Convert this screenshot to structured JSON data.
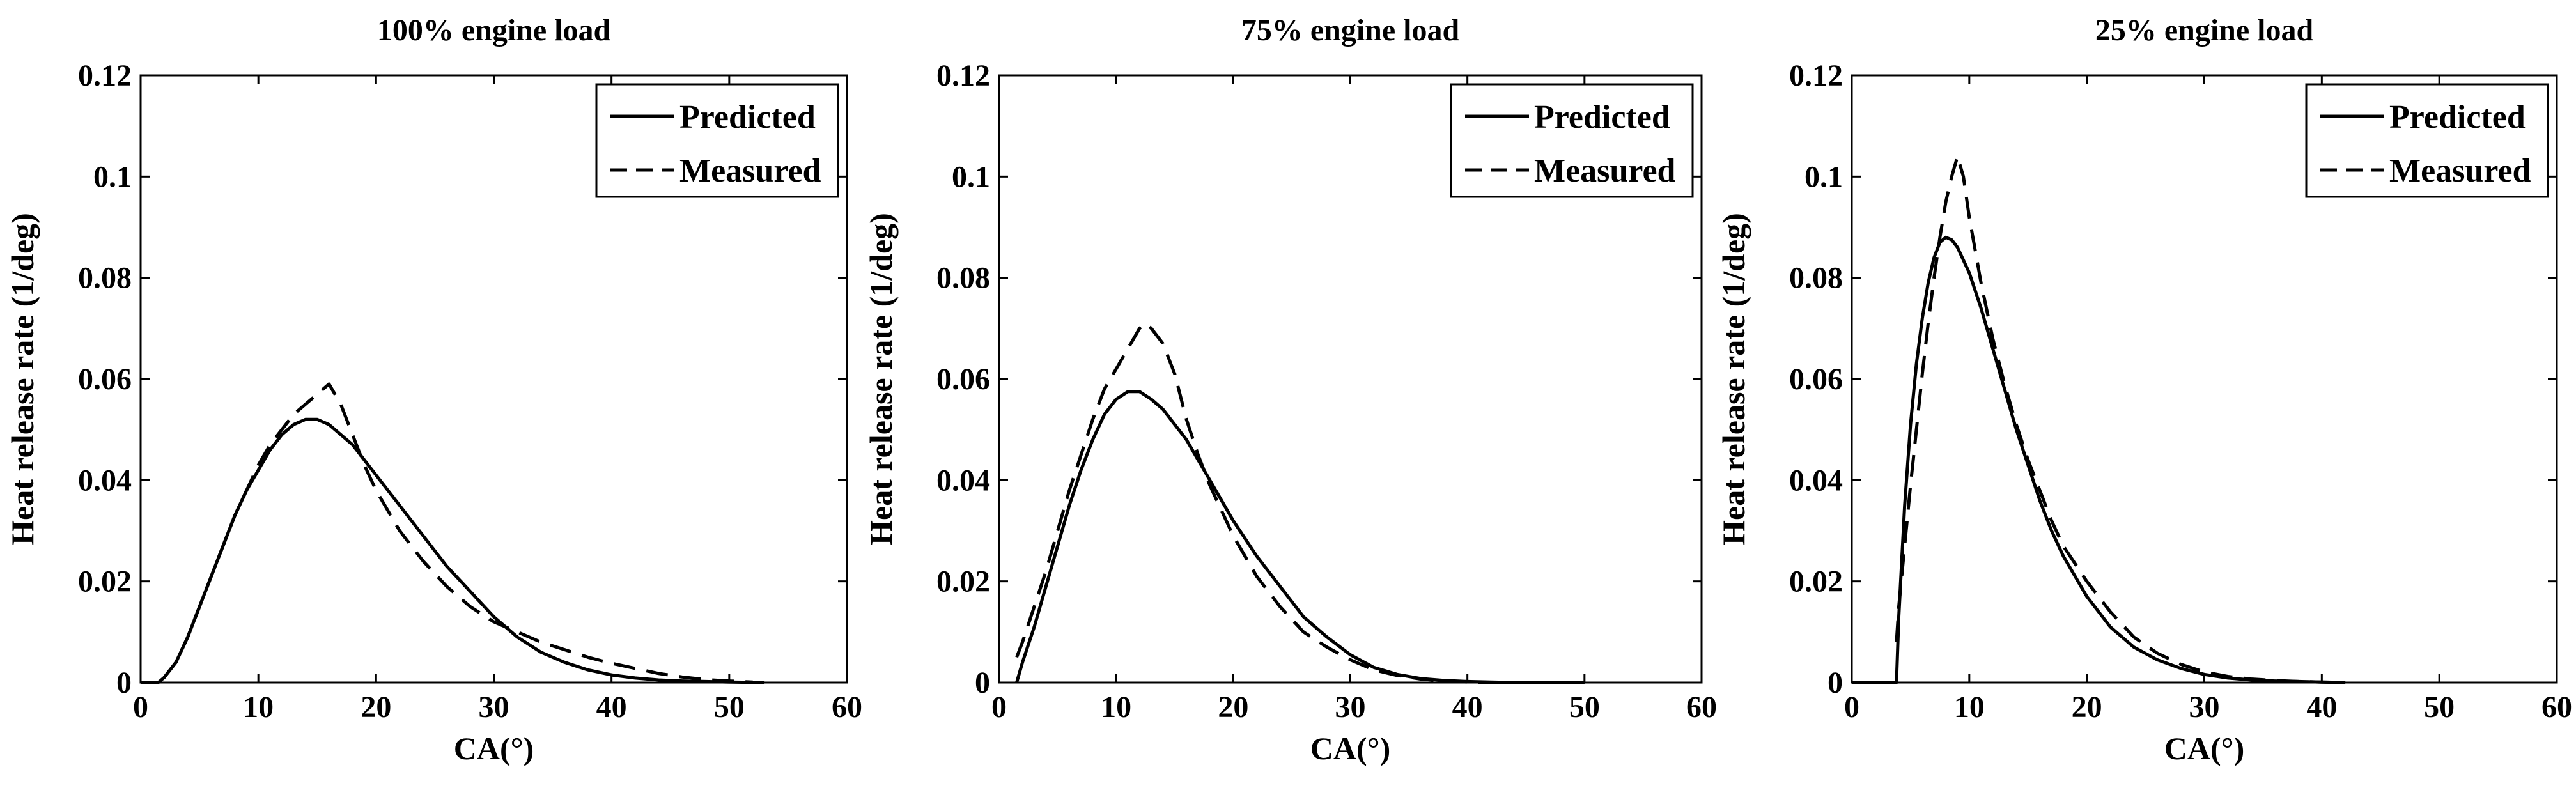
{
  "chart_data": [
    {
      "type": "line",
      "title": "100% engine load",
      "xlabel": "CA(°)",
      "ylabel": "Heat release rate (1/deg)",
      "xlim": [
        0,
        60
      ],
      "ylim": [
        0,
        0.12
      ],
      "xticks": [
        0,
        10,
        20,
        30,
        40,
        50,
        60
      ],
      "yticks": [
        0,
        0.02,
        0.04,
        0.06,
        0.08,
        0.1,
        0.12
      ],
      "xtick_labels": [
        "0",
        "10",
        "20",
        "30",
        "40",
        "50",
        "60"
      ],
      "ytick_labels": [
        "0",
        "0.02",
        "0.04",
        "0.06",
        "0.08",
        "0.1",
        "0.12"
      ],
      "grid": false,
      "legend_position": "top-right",
      "series": [
        {
          "name": "Predicted",
          "style": "solid",
          "x": [
            0,
            1.5,
            2,
            3,
            4,
            5,
            6,
            7,
            8,
            9,
            10,
            11,
            12,
            13,
            14,
            15,
            16,
            17,
            18,
            19,
            20,
            22,
            24,
            26,
            28,
            30,
            32,
            34,
            36,
            38,
            40,
            42,
            44,
            46,
            48,
            50,
            53
          ],
          "y": [
            0,
            0,
            0.001,
            0.004,
            0.009,
            0.015,
            0.021,
            0.027,
            0.033,
            0.038,
            0.042,
            0.046,
            0.049,
            0.051,
            0.052,
            0.052,
            0.051,
            0.049,
            0.047,
            0.044,
            0.041,
            0.035,
            0.029,
            0.023,
            0.018,
            0.013,
            0.009,
            0.006,
            0.004,
            0.0025,
            0.0015,
            0.0009,
            0.0005,
            0.0003,
            0.0002,
            0.0001,
            0
          ]
        },
        {
          "name": "Measured",
          "style": "dashed",
          "x": [
            2,
            3,
            4,
            5,
            6,
            7,
            8,
            9,
            10,
            11,
            12,
            13,
            14,
            15,
            16,
            17,
            18,
            19,
            20,
            22,
            24,
            26,
            28,
            30,
            32,
            34,
            36,
            38,
            40,
            42,
            44,
            46,
            48,
            50,
            52
          ],
          "y": [
            0.001,
            0.004,
            0.009,
            0.015,
            0.021,
            0.027,
            0.033,
            0.038,
            0.043,
            0.047,
            0.05,
            0.053,
            0.055,
            0.057,
            0.059,
            0.055,
            0.049,
            0.043,
            0.038,
            0.03,
            0.024,
            0.019,
            0.015,
            0.012,
            0.01,
            0.008,
            0.0065,
            0.005,
            0.0038,
            0.0028,
            0.0018,
            0.0011,
            0.0006,
            0.0003,
            0.0001
          ]
        }
      ]
    },
    {
      "type": "line",
      "title": "75% engine load",
      "xlabel": "CA(°)",
      "ylabel": "Heat release rate (1/deg)",
      "xlim": [
        0,
        60
      ],
      "ylim": [
        0,
        0.12
      ],
      "xticks": [
        0,
        10,
        20,
        30,
        40,
        50,
        60
      ],
      "yticks": [
        0,
        0.02,
        0.04,
        0.06,
        0.08,
        0.1,
        0.12
      ],
      "xtick_labels": [
        "0",
        "10",
        "20",
        "30",
        "40",
        "50",
        "60"
      ],
      "ytick_labels": [
        "0",
        "0.02",
        "0.04",
        "0.06",
        "0.08",
        "0.1",
        "0.12"
      ],
      "grid": false,
      "legend_position": "top-right",
      "series": [
        {
          "name": "Predicted",
          "style": "solid",
          "x": [
            1.5,
            2,
            3,
            4,
            5,
            6,
            7,
            8,
            9,
            10,
            11,
            12,
            13,
            14,
            15,
            16,
            17,
            18,
            20,
            22,
            24,
            26,
            28,
            30,
            32,
            34,
            36,
            38,
            40,
            42,
            44,
            46,
            48,
            50
          ],
          "y": [
            0,
            0.004,
            0.011,
            0.019,
            0.027,
            0.035,
            0.042,
            0.048,
            0.053,
            0.056,
            0.0575,
            0.0575,
            0.056,
            0.054,
            0.051,
            0.048,
            0.044,
            0.04,
            0.032,
            0.025,
            0.019,
            0.013,
            0.009,
            0.0055,
            0.003,
            0.0016,
            0.0008,
            0.0004,
            0.0002,
            0.0001,
            0,
            0,
            0,
            0
          ]
        },
        {
          "name": "Measured",
          "style": "dashed",
          "x": [
            1.5,
            2,
            3,
            4,
            5,
            6,
            7,
            8,
            9,
            10,
            11,
            12,
            12.5,
            13,
            14,
            15,
            16,
            17,
            18,
            20,
            22,
            24,
            26,
            28,
            30,
            32,
            34,
            36,
            38,
            40,
            42,
            44,
            46,
            48,
            50
          ],
          "y": [
            0.005,
            0.008,
            0.015,
            0.022,
            0.03,
            0.038,
            0.045,
            0.052,
            0.058,
            0.062,
            0.066,
            0.07,
            0.071,
            0.07,
            0.067,
            0.061,
            0.052,
            0.045,
            0.039,
            0.029,
            0.021,
            0.015,
            0.01,
            0.007,
            0.0045,
            0.0025,
            0.0014,
            0.0007,
            0.0003,
            0.0001,
            0,
            0,
            0,
            0,
            0
          ]
        }
      ]
    },
    {
      "type": "line",
      "title": "25% engine load",
      "xlabel": "CA(°)",
      "ylabel": "Heat release rate (1/deg)",
      "xlim": [
        0,
        60
      ],
      "ylim": [
        0,
        0.12
      ],
      "xticks": [
        0,
        10,
        20,
        30,
        40,
        50,
        60
      ],
      "yticks": [
        0,
        0.02,
        0.04,
        0.06,
        0.08,
        0.1,
        0.12
      ],
      "xtick_labels": [
        "0",
        "10",
        "20",
        "30",
        "40",
        "50",
        "60"
      ],
      "ytick_labels": [
        "0",
        "0.02",
        "0.04",
        "0.06",
        "0.08",
        "0.1",
        "0.12"
      ],
      "grid": false,
      "legend_position": "top-right",
      "series": [
        {
          "name": "Predicted",
          "style": "solid",
          "x": [
            0,
            3.8,
            4,
            4.5,
            5,
            5.5,
            6,
            6.5,
            7,
            7.5,
            8,
            8.5,
            9,
            10,
            11,
            12,
            13,
            14,
            15,
            16,
            17,
            18,
            20,
            22,
            24,
            26,
            28,
            30,
            32,
            34,
            36,
            38,
            40,
            42
          ],
          "y": [
            0,
            0,
            0.013,
            0.035,
            0.051,
            0.063,
            0.072,
            0.079,
            0.084,
            0.087,
            0.088,
            0.0875,
            0.086,
            0.081,
            0.074,
            0.066,
            0.058,
            0.05,
            0.043,
            0.036,
            0.03,
            0.025,
            0.017,
            0.011,
            0.007,
            0.0045,
            0.0028,
            0.0016,
            0.0009,
            0.0005,
            0.0003,
            0.0002,
            0.0001,
            0
          ]
        },
        {
          "name": "Measured",
          "style": "dashed",
          "x": [
            3.8,
            4,
            4.5,
            5,
            5.5,
            6,
            6.5,
            7,
            7.5,
            8,
            8.5,
            9,
            9.5,
            10,
            11,
            12,
            13,
            14,
            15,
            16,
            17,
            18,
            20,
            22,
            24,
            26,
            28,
            30,
            32,
            34,
            36,
            38,
            40,
            42
          ],
          "y": [
            0.008,
            0.015,
            0.027,
            0.039,
            0.05,
            0.061,
            0.071,
            0.08,
            0.088,
            0.095,
            0.1,
            0.104,
            0.1,
            0.092,
            0.079,
            0.068,
            0.059,
            0.051,
            0.044,
            0.038,
            0.032,
            0.027,
            0.02,
            0.014,
            0.009,
            0.0058,
            0.0036,
            0.0021,
            0.0012,
            0.0007,
            0.0004,
            0.0002,
            0.0001,
            0
          ]
        }
      ]
    }
  ]
}
